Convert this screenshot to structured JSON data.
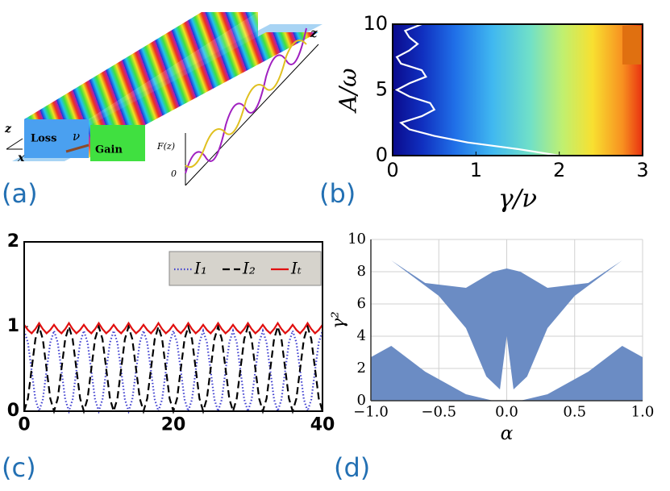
{
  "figure": {
    "panel_labels": [
      "(a)",
      "(b)",
      "(c)",
      "(d)"
    ],
    "panel_a_labels": {
      "loss": "Loss",
      "gain": "Gain",
      "z_axis": "z",
      "x_axis": "x",
      "coupling": "ν",
      "f_label": "F(z)",
      "origin": "0",
      "z_far": "z"
    }
  },
  "chart_data": [
    {
      "type": "line",
      "xlabel": "γ/ν",
      "ylabel": "A/ω",
      "xlim": [
        0,
        3
      ],
      "ylim": [
        0,
        10
      ],
      "xticks": [
        0,
        1,
        2,
        3
      ],
      "yticks": [
        0,
        5,
        10
      ],
      "series": [
        {
          "color": "#ffffff",
          "x": [
            2.0,
            1.5,
            0.9,
            0.5,
            0.2,
            0.1,
            0.35,
            0.5,
            0.45,
            0.2,
            0.05,
            0.2,
            0.4,
            0.35,
            0.1,
            0.05,
            0.2,
            0.3,
            0.2,
            0.15,
            0.35
          ],
          "y": [
            0,
            0.5,
            1,
            1.5,
            2,
            2.5,
            3,
            3.5,
            4,
            4.5,
            5,
            5.5,
            6,
            6.5,
            7,
            7.5,
            8,
            8.5,
            9,
            9.5,
            10
          ]
        }
      ]
    },
    {
      "type": "line",
      "xlim": [
        0,
        40
      ],
      "ylim": [
        0,
        2
      ],
      "xticks": [
        0,
        20,
        40
      ],
      "yticks": [
        0,
        1,
        2
      ],
      "legend": "upper right",
      "x": [
        0,
        0.5,
        1,
        1.5,
        2,
        2.5,
        3,
        3.5,
        4,
        4.5,
        5,
        5.5,
        6,
        6.5,
        7,
        7.5,
        8,
        8.5,
        9,
        9.5,
        10,
        10.5,
        11,
        11.5,
        12,
        12.5,
        13,
        13.5,
        14,
        14.5,
        15,
        15.5,
        16,
        16.5,
        17,
        17.5,
        18,
        18.5,
        19,
        19.5,
        20,
        20.5,
        21,
        21.5,
        22,
        22.5,
        23,
        23.5,
        24,
        24.5,
        25,
        25.5,
        26,
        26.5,
        27,
        27.5,
        28,
        28.5,
        29,
        29.5,
        30,
        30.5,
        31,
        31.5,
        32,
        32.5,
        33,
        33.5,
        34,
        34.5,
        35,
        35.5,
        36,
        36.5,
        37,
        37.5,
        38,
        38.5,
        39,
        39.5,
        40
      ],
      "series": [
        {
          "name": "I₁",
          "color": "#4040d0",
          "linestyle": "dotted",
          "values": [
            0.95,
            0.81,
            0.48,
            0.14,
            0,
            0.14,
            0.48,
            0.81,
            0.95,
            0.81,
            0.48,
            0.14,
            0,
            0.14,
            0.48,
            0.81,
            0.95,
            0.81,
            0.48,
            0.14,
            0,
            0.14,
            0.48,
            0.81,
            0.95,
            0.81,
            0.48,
            0.14,
            0,
            0.14,
            0.48,
            0.81,
            0.95,
            0.81,
            0.48,
            0.14,
            0,
            0.14,
            0.48,
            0.81,
            0.95,
            0.81,
            0.48,
            0.14,
            0,
            0.14,
            0.48,
            0.81,
            0.95,
            0.81,
            0.48,
            0.14,
            0,
            0.14,
            0.48,
            0.81,
            0.95,
            0.81,
            0.48,
            0.14,
            0,
            0.14,
            0.48,
            0.81,
            0.95,
            0.81,
            0.48,
            0.14,
            0,
            0.14,
            0.48,
            0.81,
            0.95,
            0.81,
            0.48,
            0.14,
            0,
            0.14,
            0.48,
            0.81,
            0.95
          ]
        },
        {
          "name": "I₂",
          "color": "#000000",
          "linestyle": "dashed",
          "values": [
            0,
            0.15,
            0.5,
            0.85,
            1,
            0.85,
            0.5,
            0.15,
            0,
            0.15,
            0.5,
            0.85,
            1,
            0.85,
            0.5,
            0.15,
            0,
            0.15,
            0.5,
            0.85,
            1,
            0.85,
            0.5,
            0.15,
            0,
            0.15,
            0.5,
            0.85,
            1,
            0.85,
            0.5,
            0.15,
            0,
            0.15,
            0.5,
            0.85,
            1,
            0.85,
            0.5,
            0.15,
            0,
            0.15,
            0.5,
            0.85,
            1,
            0.85,
            0.5,
            0.15,
            0,
            0.15,
            0.5,
            0.85,
            1,
            0.85,
            0.5,
            0.15,
            0,
            0.15,
            0.5,
            0.85,
            1,
            0.85,
            0.5,
            0.15,
            0,
            0.15,
            0.5,
            0.85,
            1,
            0.85,
            0.5,
            0.15,
            0,
            0.15,
            0.5,
            0.85,
            1,
            0.85,
            0.5,
            0.15,
            0
          ]
        },
        {
          "name": "Iₜ",
          "color": "#e01010",
          "linestyle": "solid",
          "values": [
            1.02,
            0.96,
            0.92,
            0.97,
            1.04,
            0.97,
            0.92,
            0.96,
            1.02,
            0.96,
            0.92,
            0.97,
            1.04,
            0.97,
            0.92,
            0.96,
            1.02,
            0.96,
            0.92,
            0.97,
            1.04,
            0.97,
            0.92,
            0.96,
            1.02,
            0.96,
            0.92,
            0.97,
            1.04,
            0.97,
            0.92,
            0.96,
            1.02,
            0.96,
            0.92,
            0.97,
            1.04,
            0.97,
            0.92,
            0.96,
            1.02,
            0.96,
            0.92,
            0.97,
            1.04,
            0.97,
            0.92,
            0.96,
            1.02,
            0.96,
            0.92,
            0.97,
            1.04,
            0.97,
            0.92,
            0.96,
            1.02,
            0.96,
            0.92,
            0.97,
            1.04,
            0.97,
            0.92,
            0.96,
            1.02,
            0.96,
            0.92,
            0.97,
            1.04,
            0.97,
            0.92,
            0.96,
            1.02,
            0.96,
            0.92,
            0.97,
            1.04,
            0.97,
            0.92,
            0.96,
            1.02
          ]
        }
      ]
    },
    {
      "type": "polygon",
      "xlabel": "α",
      "ylabel": "γ²",
      "color": "#6b8cc4",
      "grid": true,
      "xlim": [
        -1,
        1
      ],
      "ylim": [
        0,
        10
      ],
      "xticks": [
        {
          "value": -1,
          "label": "−1.0"
        },
        {
          "value": -0.5,
          "label": "−0.5"
        },
        {
          "value": 0,
          "label": "0.0"
        },
        {
          "value": 0.5,
          "label": "0.5"
        },
        {
          "value": 1,
          "label": "1.0"
        }
      ],
      "yticks": [
        0,
        2,
        4,
        6,
        8,
        10
      ],
      "series": [
        {
          "x": [
            -0.85,
            -0.5,
            -0.3,
            -0.15,
            -0.05,
            0,
            0.05,
            0.15,
            0.3,
            0.5,
            0.85,
            0.6,
            0.3,
            0.1,
            0,
            -0.1,
            -0.3,
            -0.6
          ],
          "y": [
            8.7,
            6.5,
            4.5,
            1.5,
            0.7,
            4,
            0.7,
            1.5,
            4.5,
            6.5,
            8.7,
            7.3,
            7.0,
            8.0,
            8.2,
            8.0,
            7.0,
            7.3
          ]
        },
        {
          "x": [
            -1,
            -0.85,
            -0.6,
            -0.3,
            -0.1,
            -1
          ],
          "y": [
            2.7,
            3.4,
            1.8,
            0.4,
            0,
            0
          ]
        },
        {
          "x": [
            1,
            0.85,
            0.6,
            0.3,
            0.1,
            1
          ],
          "y": [
            2.7,
            3.4,
            1.8,
            0.4,
            0,
            0
          ]
        }
      ]
    }
  ]
}
